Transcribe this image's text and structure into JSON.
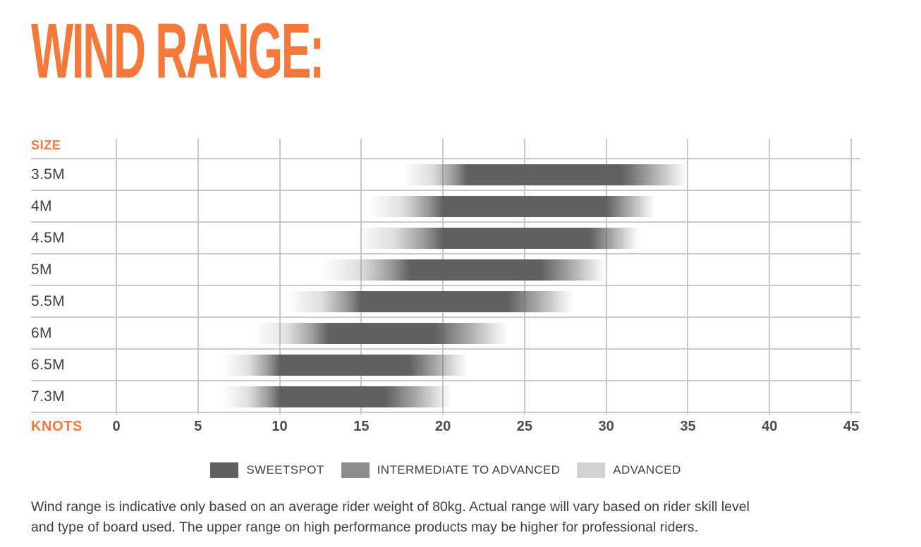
{
  "page": {
    "title": "WIND RANGE:",
    "footnote_lines": [
      "Wind range is indicative only based on an average rider weight of 80kg. Actual range will vary based on rider skill level",
      "and type of board used. The upper range on high performance products may be higher for professional riders."
    ]
  },
  "colors": {
    "accent_orange": "#f4793b",
    "grid_line": "#c9c9c9",
    "bar_dark": "#616161",
    "text_dark": "#414042"
  },
  "chart_data": {
    "type": "bar",
    "subtype": "horizontal-range-gradient",
    "title": "WIND RANGE:",
    "row_header": "SIZE",
    "x_axis_label": "KNOTS",
    "x_unit": "knots",
    "x_ticks": [
      0,
      5,
      10,
      15,
      20,
      25,
      30,
      35,
      40,
      45
    ],
    "xlim": [
      0,
      45
    ],
    "grid": true,
    "rows": [
      {
        "size": "3.5M",
        "range_start": 17.5,
        "range_end": 35,
        "sweetspot_start": 21.5,
        "sweetspot_end": 31
      },
      {
        "size": "4M",
        "range_start": 15.5,
        "range_end": 33,
        "sweetspot_start": 20,
        "sweetspot_end": 30
      },
      {
        "size": "4.5M",
        "range_start": 14.5,
        "range_end": 32,
        "sweetspot_start": 20,
        "sweetspot_end": 29
      },
      {
        "size": "5M",
        "range_start": 12.5,
        "range_end": 30,
        "sweetspot_start": 18,
        "sweetspot_end": 26
      },
      {
        "size": "5.5M",
        "range_start": 10.5,
        "range_end": 28,
        "sweetspot_start": 15,
        "sweetspot_end": 24
      },
      {
        "size": "6M",
        "range_start": 8.5,
        "range_end": 24,
        "sweetspot_start": 13,
        "sweetspot_end": 19.5
      },
      {
        "size": "6.5M",
        "range_start": 6.5,
        "range_end": 21.5,
        "sweetspot_start": 10,
        "sweetspot_end": 18
      },
      {
        "size": "7.3M",
        "range_start": 6.5,
        "range_end": 20.5,
        "sweetspot_start": 10,
        "sweetspot_end": 16.5
      }
    ],
    "legend": {
      "position": "bottom-center",
      "items": [
        {
          "label": "SWEETSPOT",
          "color": "#606060"
        },
        {
          "label": "INTERMEDIATE TO ADVANCED",
          "color": "#8d8d8d"
        },
        {
          "label": "ADVANCED",
          "color": "#d2d2d2"
        }
      ]
    }
  }
}
